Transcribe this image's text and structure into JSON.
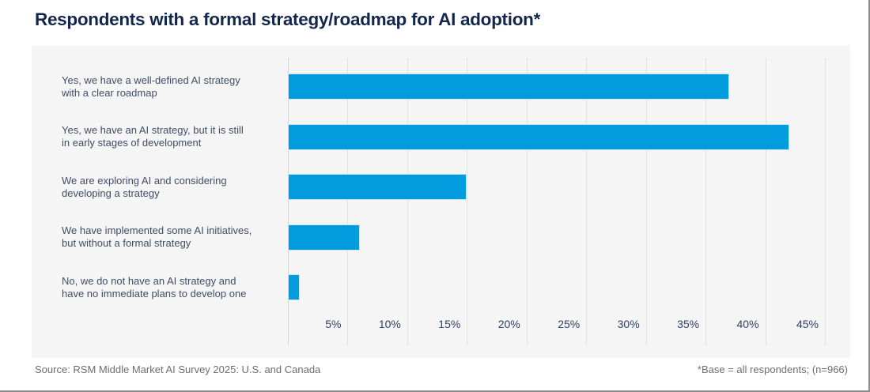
{
  "page": {
    "title": "Respondents with a formal strategy/roadmap for AI adoption*"
  },
  "footer": {
    "source": "Source: RSM Middle Market AI Survey 2025: U.S. and Canada",
    "note": "*Base = all respondents; (n=966)"
  },
  "chart_data": {
    "type": "bar",
    "orientation": "horizontal",
    "title": "Respondents with a formal strategy/roadmap for AI adoption*",
    "categories": [
      "Yes, we have a well-defined AI strategy\nwith a clear roadmap",
      "Yes, we have an AI strategy, but it is still\nin early stages of development",
      "We are exploring AI and considering\ndeveloping a strategy",
      "We have implemented some AI initiatives,\nbut without a formal strategy",
      "No, we do not have an AI strategy and\nhave no immediate plans to develop one"
    ],
    "values": [
      37,
      42,
      15,
      6,
      1
    ],
    "unit": "%",
    "xlabel": "",
    "ylabel": "",
    "xlim": [
      0,
      45
    ],
    "x_tick_step": 5,
    "x_tick_labels": [
      "5%",
      "10%",
      "15%",
      "20%",
      "25%",
      "30%",
      "35%",
      "40%",
      "45%"
    ],
    "grid": true,
    "legend": false,
    "colors": {
      "bar": "#009CDE",
      "card_background": "#F5F5F6",
      "gridline": "#E1E1E4",
      "title_text": "#13264B",
      "category_text": "#3F4D66",
      "tick_text": "#31405F",
      "footer_text": "#6E6E6E"
    }
  }
}
